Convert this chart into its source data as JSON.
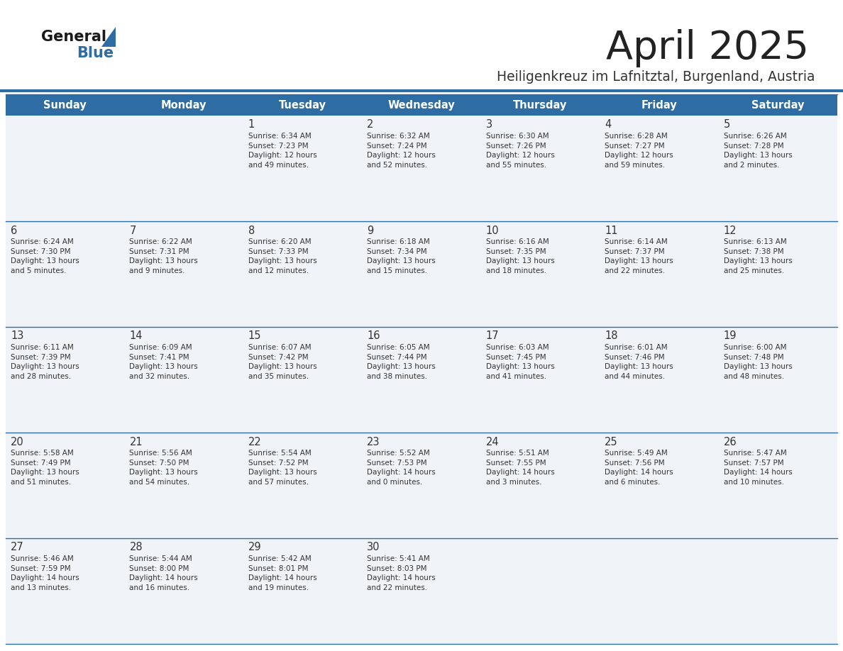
{
  "title": "April 2025",
  "subtitle": "Heiligenkreuz im Lafnitztal, Burgenland, Austria",
  "header_bg": "#2E6DA4",
  "header_text": "#FFFFFF",
  "cell_bg": "#F0F4F8",
  "separator_color": "#2E6DA4",
  "text_color": "#333333",
  "days_of_week": [
    "Sunday",
    "Monday",
    "Tuesday",
    "Wednesday",
    "Thursday",
    "Friday",
    "Saturday"
  ],
  "logo_color1": "#1A1A1A",
  "logo_color2": "#2E6DA4",
  "calendar_data": [
    [
      {
        "day": "",
        "info": ""
      },
      {
        "day": "",
        "info": ""
      },
      {
        "day": "1",
        "info": "Sunrise: 6:34 AM\nSunset: 7:23 PM\nDaylight: 12 hours\nand 49 minutes."
      },
      {
        "day": "2",
        "info": "Sunrise: 6:32 AM\nSunset: 7:24 PM\nDaylight: 12 hours\nand 52 minutes."
      },
      {
        "day": "3",
        "info": "Sunrise: 6:30 AM\nSunset: 7:26 PM\nDaylight: 12 hours\nand 55 minutes."
      },
      {
        "day": "4",
        "info": "Sunrise: 6:28 AM\nSunset: 7:27 PM\nDaylight: 12 hours\nand 59 minutes."
      },
      {
        "day": "5",
        "info": "Sunrise: 6:26 AM\nSunset: 7:28 PM\nDaylight: 13 hours\nand 2 minutes."
      }
    ],
    [
      {
        "day": "6",
        "info": "Sunrise: 6:24 AM\nSunset: 7:30 PM\nDaylight: 13 hours\nand 5 minutes."
      },
      {
        "day": "7",
        "info": "Sunrise: 6:22 AM\nSunset: 7:31 PM\nDaylight: 13 hours\nand 9 minutes."
      },
      {
        "day": "8",
        "info": "Sunrise: 6:20 AM\nSunset: 7:33 PM\nDaylight: 13 hours\nand 12 minutes."
      },
      {
        "day": "9",
        "info": "Sunrise: 6:18 AM\nSunset: 7:34 PM\nDaylight: 13 hours\nand 15 minutes."
      },
      {
        "day": "10",
        "info": "Sunrise: 6:16 AM\nSunset: 7:35 PM\nDaylight: 13 hours\nand 18 minutes."
      },
      {
        "day": "11",
        "info": "Sunrise: 6:14 AM\nSunset: 7:37 PM\nDaylight: 13 hours\nand 22 minutes."
      },
      {
        "day": "12",
        "info": "Sunrise: 6:13 AM\nSunset: 7:38 PM\nDaylight: 13 hours\nand 25 minutes."
      }
    ],
    [
      {
        "day": "13",
        "info": "Sunrise: 6:11 AM\nSunset: 7:39 PM\nDaylight: 13 hours\nand 28 minutes."
      },
      {
        "day": "14",
        "info": "Sunrise: 6:09 AM\nSunset: 7:41 PM\nDaylight: 13 hours\nand 32 minutes."
      },
      {
        "day": "15",
        "info": "Sunrise: 6:07 AM\nSunset: 7:42 PM\nDaylight: 13 hours\nand 35 minutes."
      },
      {
        "day": "16",
        "info": "Sunrise: 6:05 AM\nSunset: 7:44 PM\nDaylight: 13 hours\nand 38 minutes."
      },
      {
        "day": "17",
        "info": "Sunrise: 6:03 AM\nSunset: 7:45 PM\nDaylight: 13 hours\nand 41 minutes."
      },
      {
        "day": "18",
        "info": "Sunrise: 6:01 AM\nSunset: 7:46 PM\nDaylight: 13 hours\nand 44 minutes."
      },
      {
        "day": "19",
        "info": "Sunrise: 6:00 AM\nSunset: 7:48 PM\nDaylight: 13 hours\nand 48 minutes."
      }
    ],
    [
      {
        "day": "20",
        "info": "Sunrise: 5:58 AM\nSunset: 7:49 PM\nDaylight: 13 hours\nand 51 minutes."
      },
      {
        "day": "21",
        "info": "Sunrise: 5:56 AM\nSunset: 7:50 PM\nDaylight: 13 hours\nand 54 minutes."
      },
      {
        "day": "22",
        "info": "Sunrise: 5:54 AM\nSunset: 7:52 PM\nDaylight: 13 hours\nand 57 minutes."
      },
      {
        "day": "23",
        "info": "Sunrise: 5:52 AM\nSunset: 7:53 PM\nDaylight: 14 hours\nand 0 minutes."
      },
      {
        "day": "24",
        "info": "Sunrise: 5:51 AM\nSunset: 7:55 PM\nDaylight: 14 hours\nand 3 minutes."
      },
      {
        "day": "25",
        "info": "Sunrise: 5:49 AM\nSunset: 7:56 PM\nDaylight: 14 hours\nand 6 minutes."
      },
      {
        "day": "26",
        "info": "Sunrise: 5:47 AM\nSunset: 7:57 PM\nDaylight: 14 hours\nand 10 minutes."
      }
    ],
    [
      {
        "day": "27",
        "info": "Sunrise: 5:46 AM\nSunset: 7:59 PM\nDaylight: 14 hours\nand 13 minutes."
      },
      {
        "day": "28",
        "info": "Sunrise: 5:44 AM\nSunset: 8:00 PM\nDaylight: 14 hours\nand 16 minutes."
      },
      {
        "day": "29",
        "info": "Sunrise: 5:42 AM\nSunset: 8:01 PM\nDaylight: 14 hours\nand 19 minutes."
      },
      {
        "day": "30",
        "info": "Sunrise: 5:41 AM\nSunset: 8:03 PM\nDaylight: 14 hours\nand 22 minutes."
      },
      {
        "day": "",
        "info": ""
      },
      {
        "day": "",
        "info": ""
      },
      {
        "day": "",
        "info": ""
      }
    ]
  ]
}
